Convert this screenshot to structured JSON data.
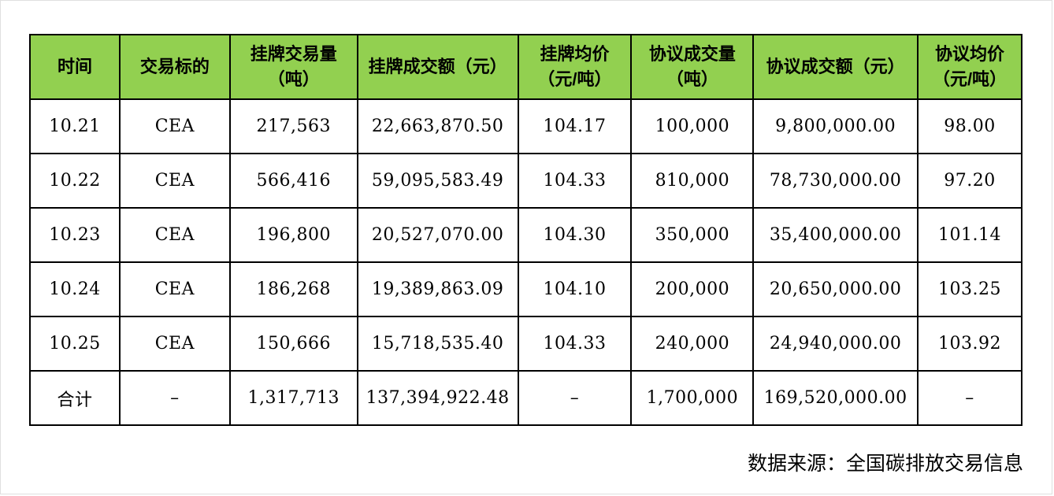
{
  "colors": {
    "header_bg": "#92D050",
    "border": "#000000",
    "text": "#000000"
  },
  "chart_data": {
    "type": "table",
    "columns": [
      {
        "line1": "时间",
        "line2": ""
      },
      {
        "line1": "交易标的",
        "line2": ""
      },
      {
        "line1": "挂牌交易量",
        "line2": "（吨）"
      },
      {
        "line1": "挂牌成交额（元）",
        "line2": ""
      },
      {
        "line1": "挂牌均价",
        "line2": "（元/吨）"
      },
      {
        "line1": "协议成交量",
        "line2": "（吨）"
      },
      {
        "line1": "协议成交额（元）",
        "line2": ""
      },
      {
        "line1": "协议均价",
        "line2": "（元/吨）"
      }
    ],
    "rows": [
      [
        "10.21",
        "CEA",
        "217,563",
        "22,663,870.50",
        "104.17",
        "100,000",
        "9,800,000.00",
        "98.00"
      ],
      [
        "10.22",
        "CEA",
        "566,416",
        "59,095,583.49",
        "104.33",
        "810,000",
        "78,730,000.00",
        "97.20"
      ],
      [
        "10.23",
        "CEA",
        "196,800",
        "20,527,070.00",
        "104.30",
        "350,000",
        "35,400,000.00",
        "101.14"
      ],
      [
        "10.24",
        "CEA",
        "186,268",
        "19,389,863.09",
        "104.10",
        "200,000",
        "20,650,000.00",
        "103.25"
      ],
      [
        "10.25",
        "CEA",
        "150,666",
        "15,718,535.40",
        "104.33",
        "240,000",
        "24,940,000.00",
        "103.92"
      ]
    ],
    "total_row": [
      "合计",
      "–",
      "1,317,713",
      "137,394,922.48",
      "–",
      "1,700,000",
      "169,520,000.00",
      "–"
    ],
    "source_note": "数据来源：全国碳排放交易信息"
  }
}
